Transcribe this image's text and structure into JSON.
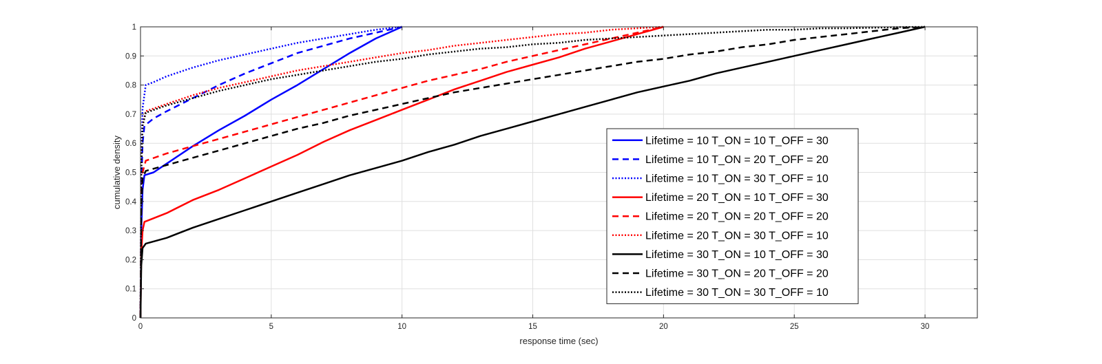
{
  "chart_data": {
    "type": "line",
    "title": "",
    "xlabel": "response time (sec)",
    "ylabel": "cumulative density",
    "xlim": [
      0,
      32
    ],
    "ylim": [
      0,
      1
    ],
    "x_ticks": [
      0,
      5,
      10,
      15,
      20,
      25,
      30
    ],
    "y_ticks": [
      0,
      0.1,
      0.2,
      0.3,
      0.4,
      0.5,
      0.6,
      0.7,
      0.8,
      0.9,
      1
    ],
    "grid": true,
    "legend_position": "bottom-right",
    "series": [
      {
        "name": "Lifetime = 10 T_ON = 10 T_OFF = 30",
        "color": "#0000ff",
        "style": "solid",
        "points": [
          [
            0,
            0
          ],
          [
            0.03,
            0.3
          ],
          [
            0.08,
            0.44
          ],
          [
            0.15,
            0.49
          ],
          [
            0.5,
            0.5
          ],
          [
            1,
            0.53
          ],
          [
            2,
            0.59
          ],
          [
            3,
            0.645
          ],
          [
            4,
            0.695
          ],
          [
            5,
            0.75
          ],
          [
            6,
            0.8
          ],
          [
            7,
            0.855
          ],
          [
            8,
            0.91
          ],
          [
            9,
            0.96
          ],
          [
            10,
            1
          ]
        ]
      },
      {
        "name": "Lifetime = 10 T_ON = 20 T_OFF = 20",
        "color": "#0000ff",
        "style": "dashed",
        "points": [
          [
            0,
            0
          ],
          [
            0.03,
            0.45
          ],
          [
            0.08,
            0.6
          ],
          [
            0.15,
            0.66
          ],
          [
            0.5,
            0.685
          ],
          [
            1,
            0.71
          ],
          [
            2,
            0.755
          ],
          [
            3,
            0.8
          ],
          [
            4,
            0.84
          ],
          [
            5,
            0.875
          ],
          [
            6,
            0.91
          ],
          [
            7,
            0.935
          ],
          [
            8,
            0.96
          ],
          [
            9,
            0.98
          ],
          [
            10,
            1
          ]
        ]
      },
      {
        "name": "Lifetime = 10 T_ON = 30 T_OFF = 10",
        "color": "#0000ff",
        "style": "dotted",
        "points": [
          [
            0,
            0
          ],
          [
            0.03,
            0.55
          ],
          [
            0.08,
            0.72
          ],
          [
            0.2,
            0.8
          ],
          [
            0.5,
            0.81
          ],
          [
            1,
            0.83
          ],
          [
            2,
            0.86
          ],
          [
            3,
            0.885
          ],
          [
            4,
            0.905
          ],
          [
            5,
            0.925
          ],
          [
            6,
            0.945
          ],
          [
            7,
            0.96
          ],
          [
            8,
            0.975
          ],
          [
            9,
            0.99
          ],
          [
            10,
            1
          ]
        ]
      },
      {
        "name": "Lifetime = 20 T_ON = 10 T_OFF = 30",
        "color": "#ff0000",
        "style": "solid",
        "points": [
          [
            0,
            0
          ],
          [
            0.03,
            0.22
          ],
          [
            0.08,
            0.3
          ],
          [
            0.15,
            0.33
          ],
          [
            1,
            0.36
          ],
          [
            2,
            0.405
          ],
          [
            3,
            0.44
          ],
          [
            4,
            0.48
          ],
          [
            5,
            0.52
          ],
          [
            6,
            0.56
          ],
          [
            7,
            0.605
          ],
          [
            8,
            0.645
          ],
          [
            9,
            0.68
          ],
          [
            10,
            0.715
          ],
          [
            11,
            0.75
          ],
          [
            12,
            0.785
          ],
          [
            13,
            0.815
          ],
          [
            14,
            0.845
          ],
          [
            15,
            0.87
          ],
          [
            16,
            0.895
          ],
          [
            17,
            0.925
          ],
          [
            18,
            0.95
          ],
          [
            19,
            0.975
          ],
          [
            20,
            1
          ]
        ]
      },
      {
        "name": "Lifetime = 20 T_ON = 20 T_OFF = 20",
        "color": "#ff0000",
        "style": "dashed",
        "points": [
          [
            0,
            0
          ],
          [
            0.03,
            0.4
          ],
          [
            0.08,
            0.5
          ],
          [
            0.2,
            0.54
          ],
          [
            1,
            0.565
          ],
          [
            2,
            0.59
          ],
          [
            3,
            0.615
          ],
          [
            4,
            0.64
          ],
          [
            5,
            0.665
          ],
          [
            6,
            0.69
          ],
          [
            7,
            0.715
          ],
          [
            8,
            0.74
          ],
          [
            9,
            0.765
          ],
          [
            10,
            0.79
          ],
          [
            11,
            0.815
          ],
          [
            12,
            0.835
          ],
          [
            13,
            0.855
          ],
          [
            14,
            0.88
          ],
          [
            15,
            0.9
          ],
          [
            16,
            0.92
          ],
          [
            17,
            0.94
          ],
          [
            18,
            0.96
          ],
          [
            19,
            0.98
          ],
          [
            20,
            1
          ]
        ]
      },
      {
        "name": "Lifetime = 20 T_ON = 30 T_OFF = 10",
        "color": "#ff0000",
        "style": "dotted",
        "points": [
          [
            0,
            0
          ],
          [
            0.03,
            0.5
          ],
          [
            0.08,
            0.66
          ],
          [
            0.2,
            0.71
          ],
          [
            1,
            0.735
          ],
          [
            2,
            0.765
          ],
          [
            3,
            0.79
          ],
          [
            4,
            0.81
          ],
          [
            5,
            0.83
          ],
          [
            6,
            0.85
          ],
          [
            7,
            0.865
          ],
          [
            8,
            0.88
          ],
          [
            9,
            0.895
          ],
          [
            10,
            0.91
          ],
          [
            11,
            0.92
          ],
          [
            12,
            0.935
          ],
          [
            13,
            0.945
          ],
          [
            14,
            0.955
          ],
          [
            15,
            0.965
          ],
          [
            16,
            0.975
          ],
          [
            17,
            0.98
          ],
          [
            18,
            0.99
          ],
          [
            19,
            0.995
          ],
          [
            20,
            1
          ]
        ]
      },
      {
        "name": "Lifetime = 30 T_ON = 10 T_OFF = 30",
        "color": "#000000",
        "style": "solid",
        "points": [
          [
            0,
            0
          ],
          [
            0.03,
            0.18
          ],
          [
            0.08,
            0.24
          ],
          [
            0.2,
            0.255
          ],
          [
            1,
            0.275
          ],
          [
            2,
            0.31
          ],
          [
            3,
            0.34
          ],
          [
            4,
            0.37
          ],
          [
            5,
            0.4
          ],
          [
            6,
            0.43
          ],
          [
            7,
            0.46
          ],
          [
            8,
            0.49
          ],
          [
            9,
            0.515
          ],
          [
            10,
            0.54
          ],
          [
            11,
            0.57
          ],
          [
            12,
            0.595
          ],
          [
            13,
            0.625
          ],
          [
            14,
            0.65
          ],
          [
            15,
            0.675
          ],
          [
            16,
            0.7
          ],
          [
            17,
            0.725
          ],
          [
            18,
            0.75
          ],
          [
            19,
            0.775
          ],
          [
            20,
            0.795
          ],
          [
            21,
            0.815
          ],
          [
            22,
            0.84
          ],
          [
            23,
            0.86
          ],
          [
            24,
            0.88
          ],
          [
            25,
            0.9
          ],
          [
            26,
            0.92
          ],
          [
            27,
            0.94
          ],
          [
            28,
            0.96
          ],
          [
            29,
            0.98
          ],
          [
            30,
            1
          ]
        ]
      },
      {
        "name": "Lifetime = 30 T_ON = 20 T_OFF = 20",
        "color": "#000000",
        "style": "dashed",
        "points": [
          [
            0,
            0
          ],
          [
            0.03,
            0.38
          ],
          [
            0.08,
            0.48
          ],
          [
            0.2,
            0.505
          ],
          [
            1,
            0.525
          ],
          [
            2,
            0.55
          ],
          [
            3,
            0.575
          ],
          [
            4,
            0.6
          ],
          [
            5,
            0.625
          ],
          [
            6,
            0.65
          ],
          [
            7,
            0.67
          ],
          [
            8,
            0.695
          ],
          [
            9,
            0.715
          ],
          [
            10,
            0.735
          ],
          [
            11,
            0.755
          ],
          [
            12,
            0.775
          ],
          [
            13,
            0.79
          ],
          [
            14,
            0.805
          ],
          [
            15,
            0.82
          ],
          [
            16,
            0.835
          ],
          [
            17,
            0.85
          ],
          [
            18,
            0.865
          ],
          [
            19,
            0.88
          ],
          [
            20,
            0.89
          ],
          [
            21,
            0.905
          ],
          [
            22,
            0.915
          ],
          [
            23,
            0.93
          ],
          [
            24,
            0.94
          ],
          [
            25,
            0.955
          ],
          [
            26,
            0.965
          ],
          [
            27,
            0.975
          ],
          [
            28,
            0.985
          ],
          [
            29,
            0.995
          ],
          [
            30,
            1
          ]
        ]
      },
      {
        "name": "Lifetime = 30 T_ON = 30 T_OFF = 10",
        "color": "#000000",
        "style": "dotted",
        "points": [
          [
            0,
            0
          ],
          [
            0.03,
            0.5
          ],
          [
            0.08,
            0.66
          ],
          [
            0.2,
            0.705
          ],
          [
            1,
            0.73
          ],
          [
            2,
            0.755
          ],
          [
            3,
            0.78
          ],
          [
            4,
            0.8
          ],
          [
            5,
            0.82
          ],
          [
            6,
            0.835
          ],
          [
            7,
            0.85
          ],
          [
            8,
            0.865
          ],
          [
            9,
            0.88
          ],
          [
            10,
            0.89
          ],
          [
            11,
            0.905
          ],
          [
            12,
            0.915
          ],
          [
            13,
            0.925
          ],
          [
            14,
            0.93
          ],
          [
            15,
            0.94
          ],
          [
            16,
            0.945
          ],
          [
            17,
            0.955
          ],
          [
            18,
            0.96
          ],
          [
            19,
            0.965
          ],
          [
            20,
            0.97
          ],
          [
            21,
            0.975
          ],
          [
            22,
            0.98
          ],
          [
            23,
            0.985
          ],
          [
            24,
            0.99
          ],
          [
            25,
            0.99
          ],
          [
            26,
            0.995
          ],
          [
            27,
            0.995
          ],
          [
            28,
            0.997
          ],
          [
            29,
            0.999
          ],
          [
            30,
            1
          ]
        ]
      }
    ]
  }
}
